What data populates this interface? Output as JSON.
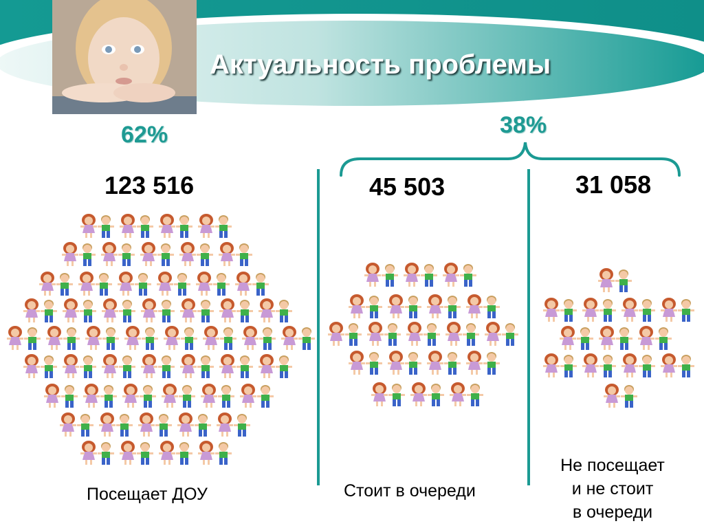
{
  "header": {
    "title": "Актуальность проблемы"
  },
  "colors": {
    "accent": "#1b9a93",
    "banner_dark": "#12908a",
    "banner_light": "#dff0f0",
    "percent_text": "#1e9a93"
  },
  "icons": [
    "child-photo",
    "bracket-icon",
    "child-figure-icon"
  ],
  "groups": [
    {
      "percent": "62%",
      "count": "123 516",
      "caption_lines": [
        "Посещает ДОУ"
      ]
    },
    {
      "percent": "38%",
      "count": "45 503",
      "caption_lines": [
        "Стоит в очереди"
      ]
    },
    {
      "count": "31 058",
      "caption_lines": [
        "Не посещает",
        "и не стоит",
        "в очереди"
      ]
    }
  ]
}
